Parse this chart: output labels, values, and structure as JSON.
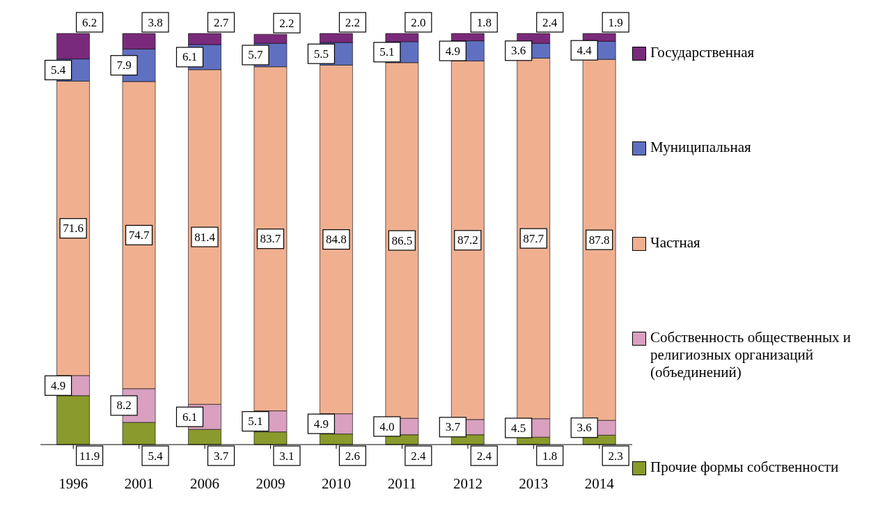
{
  "chart_data": {
    "type": "bar",
    "stacked": true,
    "legend": "right",
    "grid": false,
    "categories": [
      "1996",
      "2001",
      "2006",
      "2009",
      "2010",
      "2011",
      "2012",
      "2013",
      "2014"
    ],
    "series": [
      {
        "name": "Прочие формы собственности",
        "color": "#8a9a2c",
        "values": [
          11.9,
          5.4,
          3.7,
          3.1,
          2.6,
          2.4,
          2.4,
          1.8,
          2.3
        ],
        "value_labels": [
          "11.9",
          "5.4",
          "3.7",
          "3.1",
          "2.6",
          "2.4",
          "2.4",
          "1.8",
          "2.3"
        ]
      },
      {
        "name": "Собственность общественных и религиозных организаций (объединений)",
        "color": "#d9a0c0",
        "values": [
          4.9,
          8.2,
          6.1,
          5.1,
          4.9,
          4.0,
          3.7,
          4.5,
          3.6
        ],
        "value_labels": [
          "4.9",
          "8.2",
          "6.1",
          "5.1",
          "4.9",
          "4.0",
          "3.7",
          "4.5",
          "3.6"
        ]
      },
      {
        "name": "Частная",
        "color": "#f0b090",
        "values": [
          71.6,
          74.7,
          81.4,
          83.7,
          84.8,
          86.5,
          87.2,
          87.7,
          87.8
        ],
        "value_labels": [
          "71.6",
          "74.7",
          "81.4",
          "83.7",
          "84.8",
          "86.5",
          "87.2",
          "87.7",
          "87.8"
        ]
      },
      {
        "name": "Муниципальная",
        "color": "#6070c0",
        "values": [
          5.4,
          7.9,
          6.1,
          5.7,
          5.5,
          5.1,
          4.9,
          3.6,
          4.4
        ],
        "value_labels": [
          "5.4",
          "7.9",
          "6.1",
          "5.7",
          "5.5",
          "5.1",
          "4.9",
          "3.6",
          "4.4"
        ]
      },
      {
        "name": "Государственная",
        "color": "#7a2a7a",
        "values": [
          6.2,
          3.8,
          2.7,
          2.2,
          2.2,
          2.0,
          1.8,
          2.4,
          1.9
        ],
        "value_labels": [
          "6.2",
          "3.8",
          "2.7",
          "2.2",
          "2.2",
          "2.0",
          "1.8",
          "2.4",
          "1.9"
        ]
      }
    ]
  }
}
